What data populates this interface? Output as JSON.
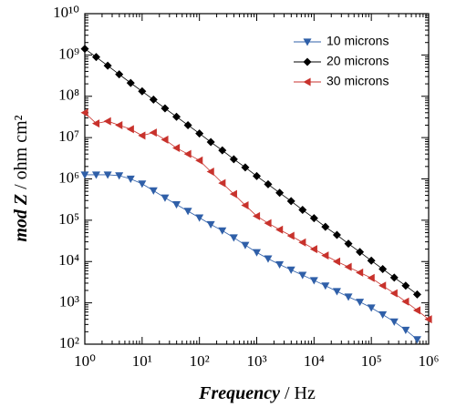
{
  "chart_data": {
    "type": "line",
    "xlog": true,
    "ylog": true,
    "xlabel": [
      "Frequency",
      " / Hz"
    ],
    "ylabel": [
      "mod Z",
      " / ohm cm²"
    ],
    "xlim": [
      1,
      1000000
    ],
    "ylim": [
      100,
      10000000000
    ],
    "xticks": [
      {
        "value": 1,
        "label": "10⁰"
      },
      {
        "value": 10,
        "label": "10¹"
      },
      {
        "value": 100,
        "label": "10²"
      },
      {
        "value": 1000,
        "label": "10³"
      },
      {
        "value": 10000,
        "label": "10⁴"
      },
      {
        "value": 100000,
        "label": "10⁵"
      },
      {
        "value": 1000000,
        "label": "10⁶"
      }
    ],
    "yticks": [
      {
        "value": 100,
        "label": "10²"
      },
      {
        "value": 1000,
        "label": "10³"
      },
      {
        "value": 10000,
        "label": "10⁴"
      },
      {
        "value": 100000,
        "label": "10⁵"
      },
      {
        "value": 1000000,
        "label": "10⁶"
      },
      {
        "value": 10000000,
        "label": "10⁷"
      },
      {
        "value": 100000000,
        "label": "10⁸"
      },
      {
        "value": 1000000000,
        "label": "10⁹"
      },
      {
        "value": 10000000000,
        "label": "10¹⁰"
      }
    ],
    "x": [
      1,
      1.58,
      2.51,
      3.98,
      6.31,
      10,
      15.8,
      25.1,
      39.8,
      63.1,
      100,
      158,
      251,
      398,
      631,
      1000,
      1580,
      2510,
      3980,
      6310,
      10000,
      15800,
      25100,
      39800,
      63100,
      100000,
      158000,
      251000,
      398000,
      631000,
      1000000
    ],
    "series": [
      {
        "name": "10 microns",
        "color": "#2f5fa8",
        "marker": "triangle-down",
        "values": [
          1260000,
          1260000,
          1260000,
          1200000,
          1000000,
          760000,
          520000,
          350000,
          240000,
          166000,
          115000,
          79000,
          56000,
          38000,
          25000,
          16600,
          11700,
          8500,
          6300,
          4700,
          3500,
          2600,
          1900,
          1400,
          1050,
          760,
          520,
          350,
          220,
          130,
          null
        ]
      },
      {
        "name": "20 microns",
        "color": "#000000",
        "marker": "diamond",
        "values": [
          1410000000,
          890000000,
          550000000,
          340000000,
          210000000,
          132000000,
          83000000,
          51000000,
          32000000,
          20000000,
          12600000,
          7800000,
          4900000,
          3000000,
          1900000,
          1170000,
          740000,
          460000,
          290000,
          178000,
          112000,
          69000,
          44000,
          27000,
          17000,
          10500,
          6600,
          4100,
          2600,
          1600,
          null
        ]
      },
      {
        "name": "30 microns",
        "color": "#c8322c",
        "marker": "triangle-left",
        "values": [
          40000000,
          22000000,
          25000000,
          20000000,
          16000000,
          11200000,
          13200000,
          8900000,
          5600000,
          4000000,
          2800000,
          1500000,
          790000,
          430000,
          230000,
          126000,
          85000,
          59000,
          42000,
          29000,
          20000,
          14000,
          10000,
          7400,
          5400,
          4000,
          2600,
          1700,
          1070,
          660,
          400
        ]
      }
    ]
  }
}
